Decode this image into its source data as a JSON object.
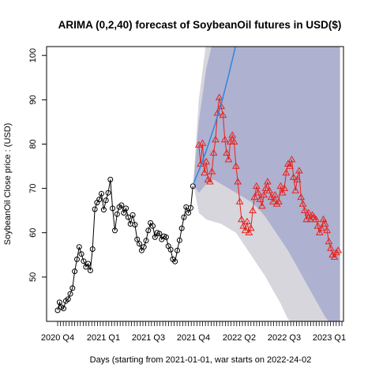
{
  "chart_data": {
    "type": "line",
    "title": "ARIMA (0,2,40) forecast of  SoybeanOil futures in USD($)",
    "xlabel": "Days (starting from 2021-01-01, war starts on 2022-24-02",
    "ylabel": "SoybeanOil Close price : (USD)",
    "xlim": [
      0,
      100
    ],
    "ylim": [
      40,
      102
    ],
    "yticks": [
      50,
      60,
      70,
      80,
      90,
      100
    ],
    "xtick_labels": [
      {
        "x": 5,
        "label": "2020 Q4"
      },
      {
        "x": 17,
        "label": "2021 Q1"
      },
      {
        "x": 29,
        "label": "2021 Q3"
      },
      {
        "x": 41,
        "label": "2021 Q4"
      },
      {
        "x": 53,
        "label": "2022 Q2"
      },
      {
        "x": 65,
        "label": "2022 Q3"
      },
      {
        "x": 77,
        "label": "2023 Q1"
      }
    ],
    "grid": false,
    "series": [
      {
        "marker": "circle",
        "color": "#000000",
        "points": [
          [
            0,
            42.5
          ],
          [
            0.5,
            44.3
          ],
          [
            1,
            43.2
          ],
          [
            1.6,
            42.9
          ],
          [
            2.2,
            44.6
          ],
          [
            2.8,
            45.0
          ],
          [
            3.4,
            46.2
          ],
          [
            4,
            47.5
          ],
          [
            4.6,
            51.3
          ],
          [
            5.2,
            54.0
          ],
          [
            5.8,
            56.8
          ],
          [
            6.4,
            55.2
          ],
          [
            7,
            53.6
          ],
          [
            7.6,
            52.3
          ],
          [
            8.2,
            53.0
          ],
          [
            8.8,
            51.5
          ],
          [
            9.4,
            56.3
          ],
          [
            10,
            65.3
          ],
          [
            10.6,
            66.8
          ],
          [
            11.2,
            67.5
          ],
          [
            11.8,
            68.8
          ],
          [
            12.4,
            65.2
          ],
          [
            13,
            67.3
          ],
          [
            13.6,
            69.0
          ],
          [
            14.2,
            72.0
          ],
          [
            14.8,
            65.5
          ],
          [
            15.4,
            60.5
          ],
          [
            16,
            64.2
          ],
          [
            16.6,
            65.8
          ],
          [
            17.2,
            66.2
          ],
          [
            17.8,
            64.5
          ],
          [
            18.4,
            65.5
          ],
          [
            19,
            63.5
          ],
          [
            19.6,
            62.0
          ],
          [
            20.2,
            64.0
          ],
          [
            20.8,
            61.8
          ],
          [
            21.4,
            58.5
          ],
          [
            22,
            57.5
          ],
          [
            22.6,
            56.0
          ],
          [
            23.2,
            56.8
          ],
          [
            23.8,
            58.2
          ],
          [
            24.4,
            60.5
          ],
          [
            25,
            62.2
          ],
          [
            25.6,
            61.5
          ],
          [
            26.2,
            59.0
          ],
          [
            26.8,
            60.0
          ],
          [
            27.4,
            59.8
          ],
          [
            28,
            58.5
          ],
          [
            28.6,
            59.2
          ],
          [
            29.2,
            59.0
          ],
          [
            29.8,
            57.0
          ],
          [
            30.4,
            56.2
          ],
          [
            31,
            54.0
          ],
          [
            31.6,
            53.5
          ],
          [
            32.2,
            56.0
          ],
          [
            32.8,
            58.3
          ],
          [
            33.4,
            61.0
          ],
          [
            34,
            63.5
          ],
          [
            34.6,
            65.8
          ],
          [
            35.2,
            64.5
          ],
          [
            35.8,
            65.6
          ],
          [
            36.4,
            70.5
          ]
        ]
      },
      {
        "marker": "triangle",
        "color": "#e8211c",
        "points": [
          [
            38,
            79.8
          ],
          [
            38.5,
            75.5
          ],
          [
            39,
            80.2
          ],
          [
            39.5,
            73.5
          ],
          [
            40,
            76.0
          ],
          [
            40.5,
            72.0
          ],
          [
            41,
            71.5
          ],
          [
            41.5,
            73.8
          ],
          [
            42,
            78.0
          ],
          [
            42.5,
            81.0
          ],
          [
            43,
            87.0
          ],
          [
            43.5,
            90.5
          ],
          [
            44,
            88.5
          ],
          [
            44.5,
            86.5
          ],
          [
            45,
            81.0
          ],
          [
            45.5,
            78.0
          ],
          [
            46,
            76.5
          ],
          [
            46.5,
            80.5
          ],
          [
            47,
            82.0
          ],
          [
            47.5,
            80.5
          ],
          [
            48,
            75.0
          ],
          [
            48.5,
            71.5
          ],
          [
            49,
            67.0
          ],
          [
            49.5,
            63.0
          ],
          [
            50,
            61.5
          ],
          [
            50.5,
            60.5
          ],
          [
            51,
            62.5
          ],
          [
            51.5,
            60.0
          ],
          [
            52,
            61.0
          ],
          [
            52.5,
            65.0
          ],
          [
            53,
            68.0
          ],
          [
            53.5,
            70.5
          ],
          [
            54,
            69.0
          ],
          [
            54.5,
            67.5
          ],
          [
            55,
            66.0
          ],
          [
            55.5,
            68.5
          ],
          [
            56,
            70.0
          ],
          [
            56.5,
            71.5
          ],
          [
            57,
            69.5
          ],
          [
            57.5,
            68.0
          ],
          [
            58,
            67.0
          ],
          [
            58.5,
            68.5
          ],
          [
            59,
            66.5
          ],
          [
            59.5,
            67.0
          ],
          [
            60,
            70.5
          ],
          [
            60.5,
            69.0
          ],
          [
            61,
            70.0
          ],
          [
            61.5,
            73.5
          ],
          [
            62,
            75.5
          ],
          [
            62.5,
            75.0
          ],
          [
            63,
            76.5
          ],
          [
            63.5,
            72.5
          ],
          [
            64,
            69.5
          ],
          [
            64.5,
            72.0
          ],
          [
            65,
            74.0
          ],
          [
            65.5,
            68.0
          ],
          [
            66,
            66.5
          ],
          [
            66.5,
            65.0
          ],
          [
            67,
            63.0
          ],
          [
            67.5,
            64.5
          ],
          [
            68,
            63.0
          ],
          [
            68.5,
            64.0
          ],
          [
            69,
            63.5
          ],
          [
            69.5,
            63.0
          ],
          [
            70,
            61.5
          ],
          [
            70.5,
            60.0
          ],
          [
            71,
            61.0
          ],
          [
            71.5,
            63.0
          ],
          [
            72,
            62.0
          ],
          [
            72.5,
            60.5
          ],
          [
            73,
            58.0
          ],
          [
            73.5,
            56.5
          ],
          [
            74,
            55.0
          ],
          [
            74.5,
            54.5
          ],
          [
            75,
            55.5
          ],
          [
            75.5,
            56.0
          ]
        ]
      },
      {
        "name": "",
        "color": "#2e86de",
        "x": [
          36.5,
          38,
          40,
          42,
          44,
          46,
          48
        ],
        "values": [
          71.0,
          74.0,
          78.5,
          83.5,
          89.0,
          95.5,
          102.5
        ]
      }
    ],
    "bands": [
      {
        "level": "outer",
        "color": "#d6d6dc",
        "x": [
          36.5,
          38,
          40,
          42,
          44,
          46,
          48,
          50,
          52,
          54,
          56,
          58,
          60,
          62,
          64,
          66,
          68,
          70,
          72,
          74,
          76
        ],
        "upper": [
          71,
          90,
          103,
          104,
          104,
          104,
          104,
          104,
          104,
          104,
          104,
          104,
          104,
          104,
          104,
          104,
          104,
          104,
          104,
          104,
          104
        ],
        "lower": [
          71,
          64.5,
          63,
          62.5,
          62,
          61,
          60,
          57.5,
          55,
          52.5,
          50,
          47,
          44,
          40.5,
          39,
          39,
          39,
          39,
          39,
          39,
          39
        ]
      },
      {
        "level": "inner",
        "color": "#aeb1cf",
        "x": [
          36.5,
          38,
          40,
          42,
          44,
          46,
          48,
          50,
          52,
          54,
          56,
          58,
          60,
          62,
          64,
          66,
          68,
          70,
          72,
          74,
          76
        ],
        "upper": [
          71,
          85,
          97,
          104,
          104,
          104,
          104,
          104,
          104,
          104,
          104,
          104,
          104,
          104,
          104,
          104,
          104,
          104,
          104,
          104,
          104
        ],
        "lower": [
          71,
          69,
          71,
          72,
          71,
          70,
          69,
          68,
          67,
          65.5,
          63.5,
          61,
          58.5,
          56,
          53,
          50,
          47,
          44,
          41,
          39,
          39
        ]
      }
    ]
  }
}
